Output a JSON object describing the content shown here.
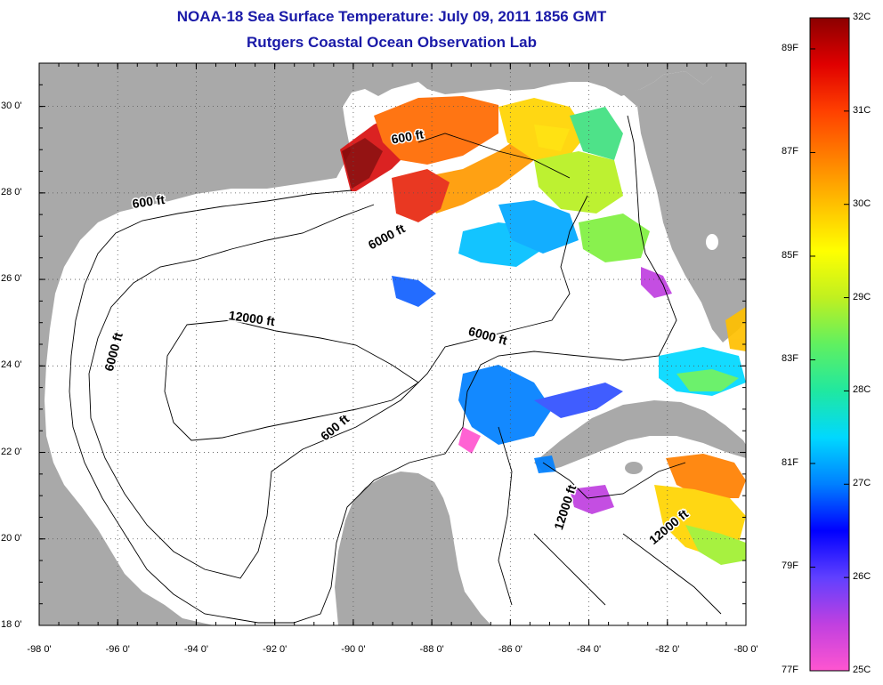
{
  "title": {
    "line1": "NOAA-18 Sea Surface Temperature:  July 09, 2011 1856 GMT",
    "line2": "Rutgers Coastal Ocean Observation Lab"
  },
  "map": {
    "lon_range": [
      -98,
      -80
    ],
    "lat_range": [
      18,
      31
    ],
    "grid": "dotted",
    "land_color": "#a9a9a9",
    "water_color": "#ffffff",
    "lat_ticks": [
      {
        "value": 30,
        "label": "30 0'"
      },
      {
        "value": 28,
        "label": "28 0'"
      },
      {
        "value": 26,
        "label": "26 0'"
      },
      {
        "value": 24,
        "label": "24 0'"
      },
      {
        "value": 22,
        "label": "22 0'"
      },
      {
        "value": 20,
        "label": "20 0'"
      },
      {
        "value": 18,
        "label": "18 0'"
      }
    ],
    "lon_ticks": [
      {
        "value": -98,
        "label": "-98 0'"
      },
      {
        "value": -96,
        "label": "-96 0'"
      },
      {
        "value": -94,
        "label": "-94 0'"
      },
      {
        "value": -92,
        "label": "-92 0'"
      },
      {
        "value": -90,
        "label": "-90 0'"
      },
      {
        "value": -88,
        "label": "-88 0'"
      },
      {
        "value": -86,
        "label": "-86 0'"
      },
      {
        "value": -84,
        "label": "-84 0'"
      },
      {
        "value": -82,
        "label": "-82 0'"
      },
      {
        "value": -80,
        "label": "-80 0'"
      }
    ],
    "contour_labels": [
      {
        "text": "600 ft",
        "lon": -95.2,
        "lat": 27.7,
        "rotate": -8
      },
      {
        "text": "600 ft",
        "lon": -88.6,
        "lat": 29.2,
        "rotate": -10
      },
      {
        "text": "6000 ft",
        "lon": -89.1,
        "lat": 26.9,
        "rotate": -28
      },
      {
        "text": "6000 ft",
        "lon": -96.0,
        "lat": 24.3,
        "rotate": -75
      },
      {
        "text": "12000 ft",
        "lon": -92.6,
        "lat": 25.0,
        "rotate": 8
      },
      {
        "text": "6000 ft",
        "lon": -86.6,
        "lat": 24.6,
        "rotate": 15
      },
      {
        "text": "600 ft",
        "lon": -90.4,
        "lat": 22.5,
        "rotate": -40
      },
      {
        "text": "12000 ft",
        "lon": -84.5,
        "lat": 20.7,
        "rotate": -72
      },
      {
        "text": "12000 ft",
        "lon": -81.9,
        "lat": 20.2,
        "rotate": -40
      }
    ]
  },
  "colorbar": {
    "stops": [
      "#ff55d0",
      "#c040e0",
      "#6040ff",
      "#0000ff",
      "#0080ff",
      "#00d8ff",
      "#20e8a0",
      "#60f060",
      "#c0f020",
      "#ffff00",
      "#ffc000",
      "#ff8000",
      "#ff4000",
      "#e00000",
      "#8b0000"
    ],
    "f_labels": [
      {
        "value": 89,
        "label": "89F"
      },
      {
        "value": 87,
        "label": "87F"
      },
      {
        "value": 85,
        "label": "85F"
      },
      {
        "value": 83,
        "label": "83F"
      },
      {
        "value": 81,
        "label": "81F"
      },
      {
        "value": 79,
        "label": "79F"
      },
      {
        "value": 77,
        "label": "77F"
      }
    ],
    "c_labels": [
      {
        "value": 32,
        "label": "32C"
      },
      {
        "value": 31,
        "label": "31C"
      },
      {
        "value": 30,
        "label": "30C"
      },
      {
        "value": 29,
        "label": "29C"
      },
      {
        "value": 28,
        "label": "28C"
      },
      {
        "value": 27,
        "label": "27C"
      },
      {
        "value": 26,
        "label": "26C"
      },
      {
        "value": 25,
        "label": "25C"
      }
    ]
  }
}
